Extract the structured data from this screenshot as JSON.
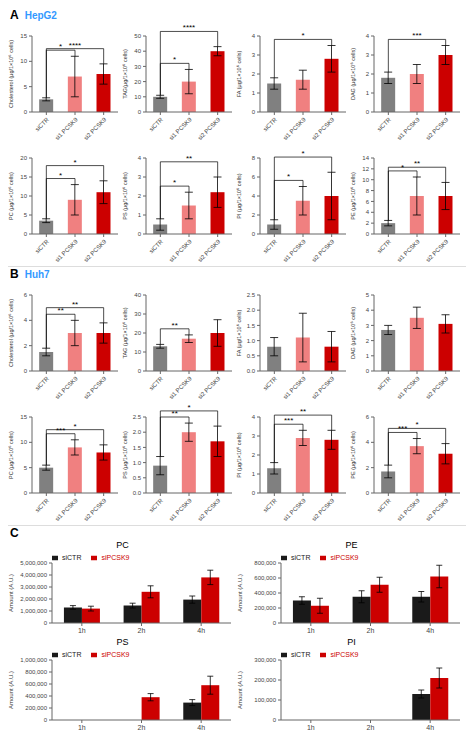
{
  "chart_data": [
    {
      "type": "bar",
      "categories": [
        "siCTR",
        "si1 PCSK9",
        "si2 PCSK9"
      ],
      "values": [
        2.5,
        7.0,
        7.5
      ],
      "errors": [
        0.3,
        4.0,
        2.0
      ],
      "colors": [
        "#808080",
        "#F08080",
        "#CC0000"
      ],
      "ylabel": "Cholesterol (μg/1×10⁶ cells)",
      "ylim": [
        0,
        15
      ],
      "yticks": [
        0,
        5,
        10,
        15
      ],
      "grid": false,
      "annotations": [
        {
          "text": "A"
        },
        {
          "text": "HepG2",
          "color": "#3399FF"
        },
        {
          "text": "*",
          "pair": [
            "siCTR",
            "si1 PCSK9"
          ]
        },
        {
          "text": "****",
          "pair": [
            "siCTR",
            "si2 PCSK9"
          ]
        }
      ]
    },
    {
      "type": "bar",
      "categories": [
        "siCTR",
        "si1 PCSK9",
        "si2 PCSK9"
      ],
      "values": [
        10,
        20,
        40
      ],
      "errors": [
        1.0,
        8.0,
        3.0
      ],
      "colors": [
        "#808080",
        "#F08080",
        "#CC0000"
      ],
      "ylabel": "TAG(μg/1×10⁶ cells)",
      "ylim": [
        0,
        50
      ],
      "yticks": [
        0,
        10,
        20,
        30,
        40,
        50
      ],
      "grid": false,
      "annotations": [
        {
          "text": "*",
          "pair": [
            "siCTR",
            "si1 PCSK9"
          ]
        },
        {
          "text": "****",
          "pair": [
            "siCTR",
            "si2 PCSK9"
          ]
        }
      ]
    },
    {
      "type": "bar",
      "categories": [
        "siCTR",
        "si1 PCSK9",
        "si2 PCSK9"
      ],
      "values": [
        1.5,
        1.7,
        2.8
      ],
      "errors": [
        0.3,
        0.5,
        0.7
      ],
      "colors": [
        "#808080",
        "#F08080",
        "#CC0000"
      ],
      "ylabel": "FA (μg/1×10⁶ cells)",
      "ylim": [
        0,
        4
      ],
      "yticks": [
        0,
        1,
        2,
        3,
        4
      ],
      "grid": false,
      "annotations": [
        {
          "text": "*",
          "pair": [
            "siCTR",
            "si2 PCSK9"
          ]
        }
      ]
    },
    {
      "type": "bar",
      "categories": [
        "siCTR",
        "si1 PCSK9",
        "si2 PCSK9"
      ],
      "values": [
        1.8,
        2.0,
        3.0
      ],
      "errors": [
        0.3,
        0.5,
        0.5
      ],
      "colors": [
        "#808080",
        "#F08080",
        "#CC0000"
      ],
      "ylabel": "DAG (μg/1×10⁶ cells)",
      "ylim": [
        0,
        4
      ],
      "yticks": [
        0,
        1,
        2,
        3,
        4
      ],
      "grid": false,
      "annotations": [
        {
          "text": "***",
          "pair": [
            "siCTR",
            "si2 PCSK9"
          ]
        }
      ]
    },
    {
      "type": "bar",
      "categories": [
        "siCTR",
        "si1 PCSK9",
        "si2 PCSK9"
      ],
      "values": [
        3.5,
        9.0,
        11.0
      ],
      "errors": [
        0.5,
        4.0,
        3.0
      ],
      "colors": [
        "#808080",
        "#F08080",
        "#CC0000"
      ],
      "ylabel": "PC (μg/1×10⁶ cells)",
      "ylim": [
        0,
        20
      ],
      "yticks": [
        0,
        5,
        10,
        15,
        20
      ],
      "grid": false,
      "annotations": [
        {
          "text": "*",
          "pair": [
            "siCTR",
            "si1 PCSK9"
          ]
        },
        {
          "text": "*",
          "pair": [
            "siCTR",
            "si2 PCSK9"
          ]
        }
      ]
    },
    {
      "type": "bar",
      "categories": [
        "siCTR",
        "si1 PCSK9",
        "si2 PCSK9"
      ],
      "values": [
        0.5,
        1.5,
        2.2
      ],
      "errors": [
        0.3,
        0.7,
        0.8
      ],
      "colors": [
        "#808080",
        "#F08080",
        "#CC0000"
      ],
      "ylabel": "PS (μg/1×10⁶ cells)",
      "ylim": [
        0,
        4
      ],
      "yticks": [
        0,
        1,
        2,
        3,
        4
      ],
      "grid": false,
      "annotations": [
        {
          "text": "*",
          "pair": [
            "siCTR",
            "si1 PCSK9"
          ]
        },
        {
          "text": "**",
          "pair": [
            "siCTR",
            "si2 PCSK9"
          ]
        }
      ]
    },
    {
      "type": "bar",
      "categories": [
        "siCTR",
        "si1 PCSK9",
        "si2 PCSK9"
      ],
      "values": [
        1.0,
        3.5,
        4.0
      ],
      "errors": [
        0.5,
        1.5,
        2.5
      ],
      "colors": [
        "#808080",
        "#F08080",
        "#CC0000"
      ],
      "ylabel": "PI (μg/1×10⁶ cells)",
      "ylim": [
        0,
        8
      ],
      "yticks": [
        0,
        2,
        4,
        6,
        8
      ],
      "grid": false,
      "annotations": [
        {
          "text": "*",
          "pair": [
            "siCTR",
            "si1 PCSK9"
          ]
        },
        {
          "text": "*",
          "pair": [
            "siCTR",
            "si2 PCSK9"
          ]
        }
      ]
    },
    {
      "type": "bar",
      "categories": [
        "siCTR",
        "si1 PCSK9",
        "si2 PCSK9"
      ],
      "values": [
        2.0,
        7.0,
        7.0
      ],
      "errors": [
        0.5,
        3.5,
        2.5
      ],
      "colors": [
        "#808080",
        "#F08080",
        "#CC0000"
      ],
      "ylabel": "PE (μg/1×10⁶ cells)",
      "ylim": [
        0,
        14
      ],
      "yticks": [
        0,
        2,
        4,
        6,
        8,
        10,
        12,
        14
      ],
      "grid": false,
      "annotations": [
        {
          "text": "*",
          "pair": [
            "siCTR",
            "si1 PCSK9"
          ]
        },
        {
          "text": "**",
          "pair": [
            "siCTR",
            "si2 PCSK9"
          ]
        }
      ]
    },
    {
      "type": "bar",
      "categories": [
        "siCTR",
        "si1 PCSK9",
        "si2 PCSK9"
      ],
      "values": [
        1.5,
        3.0,
        3.0
      ],
      "errors": [
        0.3,
        1.0,
        0.8
      ],
      "colors": [
        "#808080",
        "#F08080",
        "#CC0000"
      ],
      "ylabel": "Cholesterol (μg/1×10⁶ cells)",
      "ylim": [
        0,
        6
      ],
      "yticks": [
        0,
        2,
        4,
        6
      ],
      "grid": false,
      "annotations": [
        {
          "text": "B"
        },
        {
          "text": "Huh7",
          "color": "#3399FF"
        },
        {
          "text": "**",
          "pair": [
            "siCTR",
            "si1 PCSK9"
          ]
        },
        {
          "text": "**",
          "pair": [
            "siCTR",
            "si2 PCSK9"
          ]
        }
      ]
    },
    {
      "type": "bar",
      "categories": [
        "siCTR",
        "si1 PCSK9",
        "si2 PCSK9"
      ],
      "values": [
        13,
        17,
        20
      ],
      "errors": [
        1.0,
        2.0,
        7.0
      ],
      "colors": [
        "#808080",
        "#F08080",
        "#CC0000"
      ],
      "ylabel": "TAG (μg/1×10⁶ cells)",
      "ylim": [
        0,
        40
      ],
      "yticks": [
        0,
        10,
        20,
        30,
        40
      ],
      "grid": false,
      "annotations": [
        {
          "text": "**",
          "pair": [
            "siCTR",
            "si1 PCSK9"
          ]
        }
      ]
    },
    {
      "type": "bar",
      "categories": [
        "siCTR",
        "si1 PCSK9",
        "si2 PCSK9"
      ],
      "values": [
        0.8,
        1.1,
        0.8
      ],
      "errors": [
        0.3,
        0.8,
        0.5
      ],
      "colors": [
        "#808080",
        "#F08080",
        "#CC0000"
      ],
      "ylabel": "FA (μg/1×10⁶ cells)",
      "ylim": [
        0,
        2.5
      ],
      "yticks": [
        {
          "value": 0,
          "label": "0.0"
        },
        0.5,
        {
          "value": 1,
          "label": "1.0"
        },
        1.5,
        {
          "value": 2,
          "label": "2.0"
        },
        2.5
      ],
      "grid": false
    },
    {
      "type": "bar",
      "categories": [
        "siCTR",
        "si1 PCSK9",
        "si2 PCSK9"
      ],
      "values": [
        2.7,
        3.5,
        3.1
      ],
      "errors": [
        0.3,
        0.7,
        0.6
      ],
      "colors": [
        "#808080",
        "#F08080",
        "#CC0000"
      ],
      "ylabel": "DAG (μg/1×10⁶ cells)",
      "ylim": [
        0,
        5
      ],
      "yticks": [
        0,
        1,
        2,
        3,
        4,
        5
      ],
      "grid": false
    },
    {
      "type": "bar",
      "categories": [
        "siCTR",
        "si1 PCSK9",
        "si2 PCSK9"
      ],
      "values": [
        5.0,
        9.0,
        8.0
      ],
      "errors": [
        0.5,
        1.5,
        1.5
      ],
      "colors": [
        "#808080",
        "#F08080",
        "#CC0000"
      ],
      "ylabel": "PC (μg/1×10⁶ cells)",
      "ylim": [
        0,
        15
      ],
      "yticks": [
        0,
        5,
        10,
        15
      ],
      "grid": false,
      "annotations": [
        {
          "text": "***",
          "pair": [
            "siCTR",
            "si1 PCSK9"
          ]
        },
        {
          "text": "*",
          "pair": [
            "siCTR",
            "si2 PCSK9"
          ]
        }
      ]
    },
    {
      "type": "bar",
      "categories": [
        "siCTR",
        "si1 PCSK9",
        "si2 PCSK9"
      ],
      "values": [
        0.9,
        2.0,
        1.7
      ],
      "errors": [
        0.3,
        0.3,
        0.5
      ],
      "colors": [
        "#808080",
        "#F08080",
        "#CC0000"
      ],
      "ylabel": "PS (μg/1×10⁶ cells)",
      "ylim": [
        0,
        2.5
      ],
      "yticks": [
        {
          "value": 0,
          "label": "0.0"
        },
        0.5,
        {
          "value": 1,
          "label": "1.0"
        },
        1.5,
        {
          "value": 2,
          "label": "2.0"
        },
        2.5
      ],
      "grid": false,
      "annotations": [
        {
          "text": "**",
          "pair": [
            "siCTR",
            "si1 PCSK9"
          ]
        },
        {
          "text": "*",
          "pair": [
            "siCTR",
            "si2 PCSK9"
          ]
        }
      ]
    },
    {
      "type": "bar",
      "categories": [
        "siCTR",
        "si1 PCSK9",
        "si2 PCSK9"
      ],
      "values": [
        1.3,
        2.9,
        2.8
      ],
      "errors": [
        0.3,
        0.4,
        0.5
      ],
      "colors": [
        "#808080",
        "#F08080",
        "#CC0000"
      ],
      "ylabel": "PI (μg/1×10⁶ cells)",
      "ylim": [
        0,
        4
      ],
      "yticks": [
        0,
        1,
        2,
        3,
        4
      ],
      "grid": false,
      "annotations": [
        {
          "text": "***",
          "pair": [
            "siCTR",
            "si1 PCSK9"
          ]
        },
        {
          "text": "**",
          "pair": [
            "siCTR",
            "si2 PCSK9"
          ]
        }
      ]
    },
    {
      "type": "bar",
      "categories": [
        "siCTR",
        "si1 PCSK9",
        "si2 PCSK9"
      ],
      "values": [
        1.7,
        3.7,
        3.1
      ],
      "errors": [
        0.5,
        0.6,
        0.8
      ],
      "colors": [
        "#808080",
        "#F08080",
        "#CC0000"
      ],
      "ylabel": "PE (μg/1×10⁶ cells)",
      "ylim": [
        0,
        6
      ],
      "yticks": [
        0,
        2,
        4,
        6
      ],
      "grid": false,
      "annotations": [
        {
          "text": "***",
          "pair": [
            "siCTR",
            "si1 PCSK9"
          ]
        },
        {
          "text": "*",
          "pair": [
            "siCTR",
            "si2 PCSK9"
          ]
        }
      ]
    },
    {
      "type": "bar",
      "title": "PC",
      "categories": [
        "1h",
        "2h",
        "4h"
      ],
      "series": [
        {
          "name": "siCTR",
          "color": "#1a1a1a",
          "values": [
            1300000,
            1450000,
            1950000
          ],
          "errors": [
            150000,
            200000,
            300000
          ]
        },
        {
          "name": "siPCSK9",
          "color": "#CC0000",
          "values": [
            1200000,
            2600000,
            3800000
          ],
          "errors": [
            200000,
            500000,
            600000
          ]
        }
      ],
      "ylabel": "Amount (A.U.)",
      "ylim": [
        0,
        5000000
      ],
      "yticks": [
        0,
        {
          "value": 1000000,
          "label": "1,000,000"
        },
        {
          "value": 2000000,
          "label": "2,000,000"
        },
        {
          "value": 3000000,
          "label": "3,000,000"
        },
        {
          "value": 4000000,
          "label": "4,000,000"
        },
        {
          "value": 5000000,
          "label": "5,000,000"
        }
      ],
      "legend": "upper left",
      "grid": false,
      "annotations": [
        {
          "text": "C"
        }
      ]
    },
    {
      "type": "bar",
      "title": "PE",
      "categories": [
        "1h",
        "2h",
        "4h"
      ],
      "series": [
        {
          "name": "siCTR",
          "color": "#1a1a1a",
          "values": [
            300000,
            350000,
            350000
          ],
          "errors": [
            50000,
            80000,
            70000
          ]
        },
        {
          "name": "siPCSK9",
          "color": "#CC0000",
          "values": [
            230000,
            510000,
            620000
          ],
          "errors": [
            100000,
            100000,
            150000
          ]
        }
      ],
      "ylabel": "Amount (A.U.)",
      "ylim": [
        0,
        800000
      ],
      "yticks": [
        0,
        {
          "value": 200000,
          "label": "200,000"
        },
        {
          "value": 400000,
          "label": "400,000"
        },
        {
          "value": 600000,
          "label": "600,000"
        },
        {
          "value": 800000,
          "label": "800,000"
        }
      ],
      "legend": "upper left",
      "grid": false
    },
    {
      "type": "bar",
      "title": "PS",
      "categories": [
        "1h",
        "2h",
        "4h"
      ],
      "series": [
        {
          "name": "siCTR",
          "color": "#1a1a1a",
          "values": [
            0,
            0,
            290000
          ],
          "errors": [
            0,
            0,
            50000
          ]
        },
        {
          "name": "siPCSK9",
          "color": "#CC0000",
          "values": [
            0,
            380000,
            580000
          ],
          "errors": [
            0,
            60000,
            150000
          ]
        }
      ],
      "ylabel": "Amount (A.U.)",
      "ylim": [
        0,
        1000000
      ],
      "yticks": [
        0,
        {
          "value": 200000,
          "label": "200,000"
        },
        {
          "value": 400000,
          "label": "400,000"
        },
        {
          "value": 600000,
          "label": "600,000"
        },
        {
          "value": 800000,
          "label": "800,000"
        },
        {
          "value": 1000000,
          "label": "1,000,000"
        }
      ],
      "legend": "upper left",
      "grid": false
    },
    {
      "type": "bar",
      "title": "PI",
      "categories": [
        "1h",
        "2h",
        "4h"
      ],
      "series": [
        {
          "name": "siCTR",
          "color": "#1a1a1a",
          "values": [
            0,
            0,
            130000
          ],
          "errors": [
            0,
            0,
            20000
          ]
        },
        {
          "name": "siPCSK9",
          "color": "#CC0000",
          "values": [
            0,
            0,
            210000
          ],
          "errors": [
            0,
            0,
            50000
          ]
        }
      ],
      "ylabel": "Amount (A.U.)",
      "ylim": [
        0,
        300000
      ],
      "yticks": [
        0,
        {
          "value": 100000,
          "label": "100,000"
        },
        {
          "value": 200000,
          "label": "200,000"
        },
        {
          "value": 300000,
          "label": "300,000"
        }
      ],
      "legend": "upper left",
      "grid": false
    }
  ]
}
